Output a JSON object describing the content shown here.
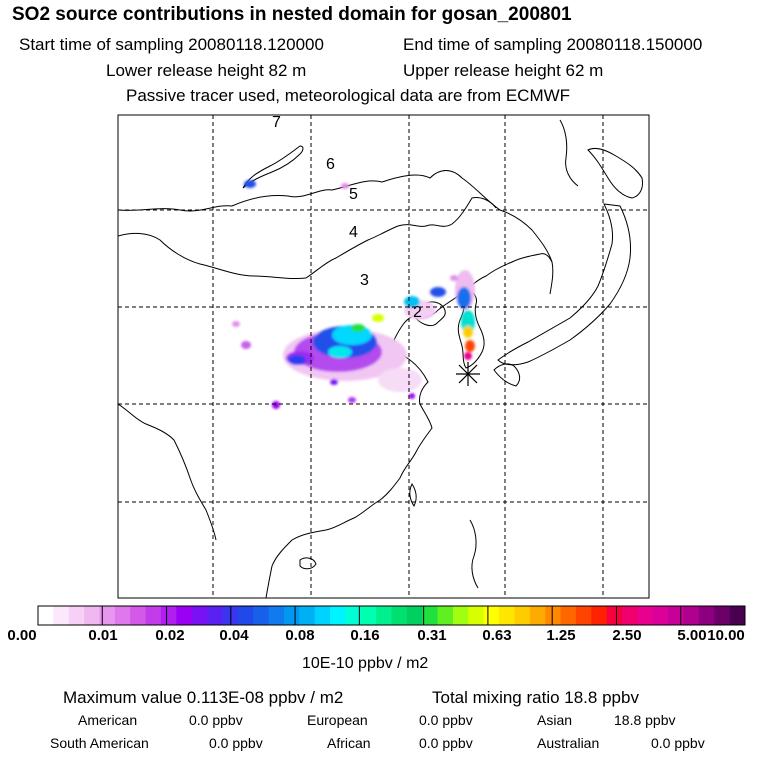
{
  "title": "SO2 source contributions in nested domain for gosan_200801",
  "header": {
    "start": "Start time of sampling 20080118.120000",
    "end": "End time of sampling 20080118.150000",
    "lower": "Lower release height   82 m",
    "upper": "Upper release height   62 m",
    "passive": "Passive tracer used, meteorological data are from ECMWF"
  },
  "map": {
    "day_labels": [
      "7",
      "6",
      "5",
      "4",
      "3",
      "2"
    ],
    "receptor_marker": "asterisk-icon"
  },
  "colorbar": {
    "tick_labels": [
      "0.00",
      "0.01",
      "0.02",
      "0.04",
      "0.08",
      "0.16",
      "0.31",
      "0.63",
      "1.25",
      "2.50",
      "5.00",
      "10.00"
    ],
    "unit": "10E-10 ppbv / m2",
    "colors": [
      "#ffffff",
      "#fbe8fb",
      "#f7d0f7",
      "#f0b8f0",
      "#e897ee",
      "#df78ec",
      "#d35ae8",
      "#c23cea",
      "#ae1ff0",
      "#9c00f4",
      "#7a10f4",
      "#5a22f2",
      "#3b35f0",
      "#2048ea",
      "#1860ea",
      "#107aee",
      "#0098f0",
      "#00b0f4",
      "#00d2ff",
      "#00f4ff",
      "#00ffd4",
      "#00ffb0",
      "#00f090",
      "#00e070",
      "#00d060",
      "#20e040",
      "#60f020",
      "#a0ff10",
      "#d8ff00",
      "#ffff00",
      "#ffe600",
      "#ffcc00",
      "#ffaa00",
      "#ff8800",
      "#ff6600",
      "#ff4400",
      "#ff2200",
      "#f80040",
      "#f0006c",
      "#e8008e",
      "#da0098",
      "#c8009a",
      "#b0008e",
      "#8c0080",
      "#6a0068",
      "#4a0050"
    ]
  },
  "footer": {
    "maximum": "Maximum value  0.113E-08 ppbv / m2",
    "total": "Total mixing ratio      18.8 ppbv",
    "regions": [
      {
        "name": "American",
        "value": "0.0 ppbv"
      },
      {
        "name": "European",
        "value": "0.0 ppbv"
      },
      {
        "name": "Asian",
        "value": "18.8 ppbv"
      },
      {
        "name": "South American",
        "value": "0.0 ppbv"
      },
      {
        "name": "African",
        "value": "0.0 ppbv"
      },
      {
        "name": "Australian",
        "value": "0.0 ppbv"
      }
    ]
  },
  "chart_data": {
    "type": "heatmap",
    "title": "SO2 source contributions in nested domain for gosan_200801",
    "colorbar_levels": [
      0.0,
      0.01,
      0.02,
      0.04,
      0.08,
      0.16,
      0.31,
      0.63,
      1.25,
      2.5,
      5.0,
      10.0
    ],
    "colorbar_unit": "10E-10 ppbv / m2",
    "maximum_value": "0.113E-08 ppbv / m2",
    "total_mixing_ratio_ppbv": 18.8,
    "regional_contributions_ppbv": {
      "American": 0.0,
      "European": 0.0,
      "Asian": 18.8,
      "South American": 0.0,
      "African": 0.0,
      "Australian": 0.0
    },
    "grid": true
  }
}
